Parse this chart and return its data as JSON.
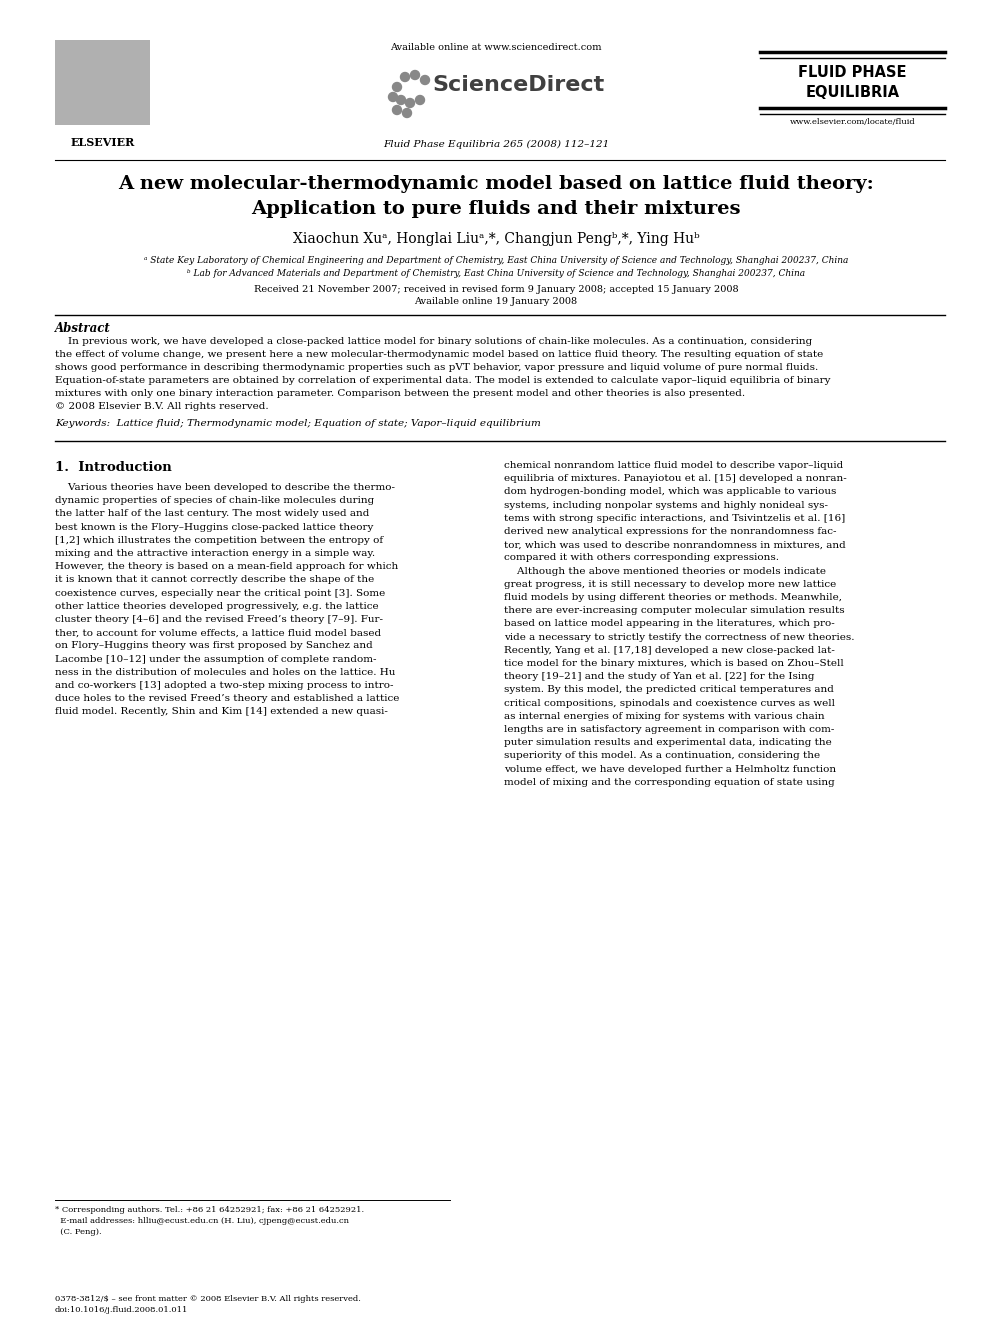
{
  "bg_color": "#ffffff",
  "title_line1": "A new molecular-thermodynamic model based on lattice fluid theory:",
  "title_line2": "Application to pure fluids and their mixtures",
  "authors_plain": "Xiaochun Xuᵃ, Honglai Liuᵃ,*, Changjun Pengᵇ,*, Ying Huᵇ",
  "affil_a": "ᵃ State Key Laboratory of Chemical Engineering and Department of Chemistry, East China University of Science and Technology, Shanghai 200237, China",
  "affil_b": "ᵇ Lab for Advanced Materials and Department of Chemistry, East China University of Science and Technology, Shanghai 200237, China",
  "dates": "Received 21 November 2007; received in revised form 9 January 2008; accepted 15 January 2008",
  "online": "Available online 19 January 2008",
  "header_available": "Available online at www.sciencedirect.com",
  "sciencedirect": "ScienceDirect",
  "journal_line": "Fluid Phase Equilibria 265 (2008) 112–121",
  "elsevier_text": "ELSEVIER",
  "journal_name_line1": "FLUID PHASE",
  "journal_name_line2": "EQUILIBRIA",
  "website": "www.elsevier.com/locate/fluid",
  "abstract_title": "Abstract",
  "abstract_body": "In previous work, we have developed a close-packed lattice model for binary solutions of chain-like molecules. As a continuation, considering the effect of volume change, we present here a new molecular-thermodynamic model based on lattice fluid theory. The resulting equation of state shows good performance in describing thermodynamic properties such as pVT behavior, vapor pressure and liquid volume of pure normal fluids. Equation-of-state parameters are obtained by correlation of experimental data. The model is extended to calculate vapor–liquid equilibria of binary mixtures with only one binary interaction parameter. Comparison between the present model and other theories is also presented.\n© 2008 Elsevier B.V. All rights reserved.",
  "keywords_label": "Keywords:",
  "keywords_text": "  Lattice fluid; Thermodynamic model; Equation of state; Vapor–liquid equilibrium",
  "section1_title": "1.  Introduction",
  "left_col_lines": [
    "    Various theories have been developed to describe the thermo-",
    "dynamic properties of species of chain-like molecules during",
    "the latter half of the last century. The most widely used and",
    "best known is the Flory–Huggins close-packed lattice theory",
    "[1,2] which illustrates the competition between the entropy of",
    "mixing and the attractive interaction energy in a simple way.",
    "However, the theory is based on a mean-field approach for which",
    "it is known that it cannot correctly describe the shape of the",
    "coexistence curves, especially near the critical point [3]. Some",
    "other lattice theories developed progressively, e.g. the lattice",
    "cluster theory [4–6] and the revised Freed’s theory [7–9]. Fur-",
    "ther, to account for volume effects, a lattice fluid model based",
    "on Flory–Huggins theory was first proposed by Sanchez and",
    "Lacombe [10–12] under the assumption of complete random-",
    "ness in the distribution of molecules and holes on the lattice. Hu",
    "and co-workers [13] adopted a two-step mixing process to intro-",
    "duce holes to the revised Freed’s theory and established a lattice",
    "fluid model. Recently, Shin and Kim [14] extended a new quasi-"
  ],
  "right_col_lines": [
    "chemical nonrandom lattice fluid model to describe vapor–liquid",
    "equilibria of mixtures. Panayiotou et al. [15] developed a nonran-",
    "dom hydrogen-bonding model, which was applicable to various",
    "systems, including nonpolar systems and highly nonideal sys-",
    "tems with strong specific interactions, and Tsivintzelis et al. [16]",
    "derived new analytical expressions for the nonrandomness fac-",
    "tor, which was used to describe nonrandomness in mixtures, and",
    "compared it with others corresponding expressions.",
    "    Although the above mentioned theories or models indicate",
    "great progress, it is still necessary to develop more new lattice",
    "fluid models by using different theories or methods. Meanwhile,",
    "there are ever-increasing computer molecular simulation results",
    "based on lattice model appearing in the literatures, which pro-",
    "vide a necessary to strictly testify the correctness of new theories.",
    "Recently, Yang et al. [17,18] developed a new close-packed lat-",
    "tice model for the binary mixtures, which is based on Zhou–Stell",
    "theory [19–21] and the study of Yan et al. [22] for the Ising",
    "system. By this model, the predicted critical temperatures and",
    "critical compositions, spinodals and coexistence curves as well",
    "as internal energies of mixing for systems with various chain",
    "lengths are in satisfactory agreement in comparison with com-",
    "puter simulation results and experimental data, indicating the",
    "superiority of this model. As a continuation, considering the",
    "volume effect, we have developed further a Helmholtz function",
    "model of mixing and the corresponding equation of state using"
  ],
  "footnote_lines": [
    "* Corresponding authors. Tel.: +86 21 64252921; fax: +86 21 64252921.",
    "  E-mail addresses: hlliu@ecust.edu.cn (H. Liu), cjpeng@ecust.edu.cn",
    "  (C. Peng)."
  ],
  "footer_line1": "0378-3812/$ – see front matter © 2008 Elsevier B.V. All rights reserved.",
  "footer_line2": "doi:10.1016/j.fluid.2008.01.011"
}
